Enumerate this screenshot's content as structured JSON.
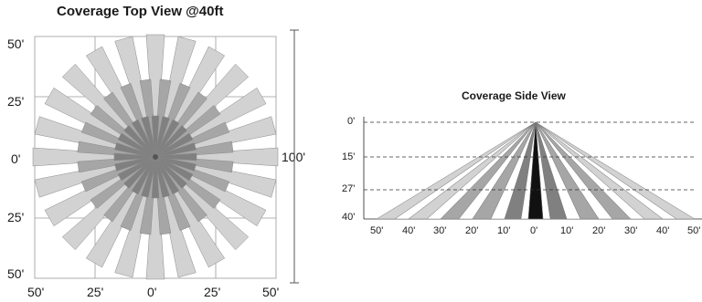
{
  "top_view": {
    "title": "Coverage Top View @40ft",
    "left_labels": [
      "50'",
      "25'",
      "0'",
      "25'",
      "50'"
    ],
    "bottom_labels": [
      "50'",
      "25'",
      "0'",
      "25'",
      "50'"
    ],
    "extent_label": "100'"
  },
  "side_view": {
    "title": "Coverage Side View",
    "height_labels": [
      "0'",
      "15'",
      "27'",
      "40'"
    ],
    "bottom_labels": [
      "50'",
      "40'",
      "30'",
      "20'",
      "10'",
      "0'",
      "10'",
      "20'",
      "30'",
      "40'",
      "50'"
    ]
  },
  "colors": {
    "light_beam": "#d2d2d2",
    "mid_beam": "#a6a6a6",
    "dark_beam": "#808080",
    "black_beam": "#111111",
    "grid": "#9a9a9a"
  }
}
